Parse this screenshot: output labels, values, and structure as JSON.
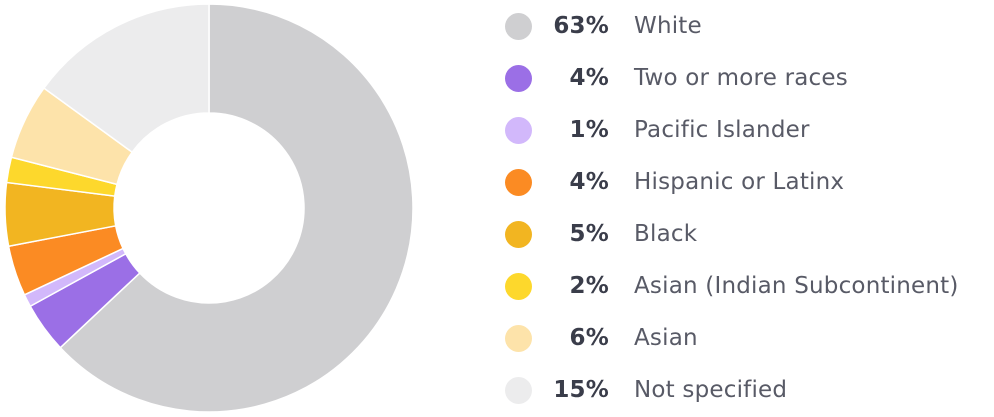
{
  "chart_data": {
    "type": "pie",
    "donut": true,
    "categories": [
      "White",
      "Two or more races",
      "Pacific Islander",
      "Hispanic or Latinx",
      "Black",
      "Asian (Indian Subcontinent)",
      "Asian",
      "Not specified"
    ],
    "values": [
      63,
      4,
      1,
      4,
      5,
      2,
      6,
      15
    ],
    "labels": [
      "63%",
      "4%",
      "1%",
      "4%",
      "5%",
      "2%",
      "6%",
      "15%"
    ],
    "colors": [
      "#cfcfd1",
      "#9b6fe6",
      "#d2b8fb",
      "#fb8b23",
      "#f2b521",
      "#fdd82c",
      "#fde3aa",
      "#ececed"
    ],
    "legend_position": "right",
    "title": "",
    "xlabel": "",
    "ylabel": ""
  }
}
